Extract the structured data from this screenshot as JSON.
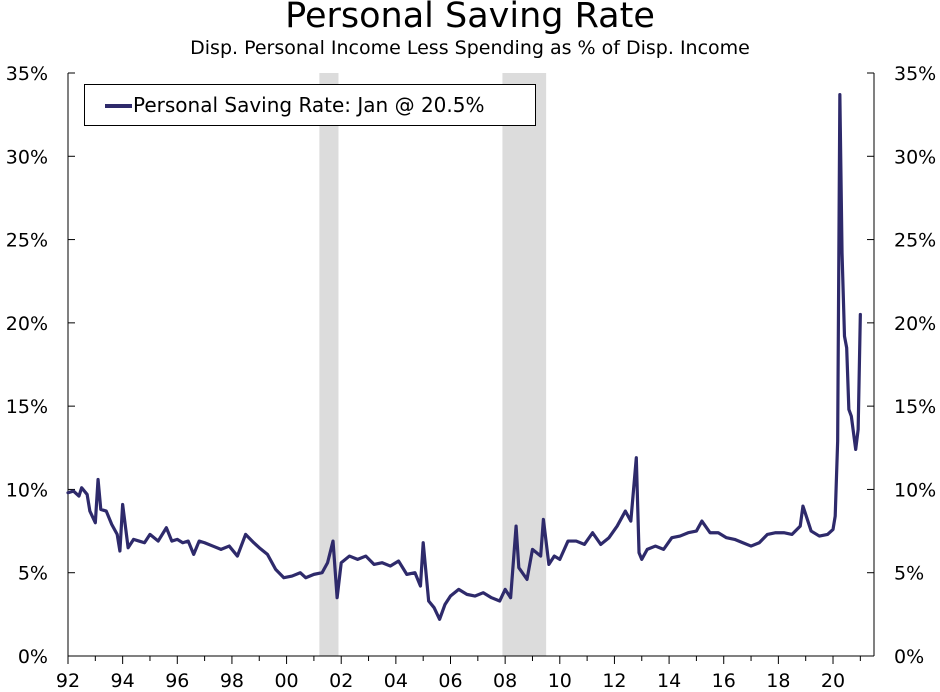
{
  "chart_data": {
    "type": "line",
    "title": "Personal Saving Rate",
    "subtitle": "Disp. Personal Income Less Spending as % of Disp. Income",
    "xlabel": "",
    "ylabel": "",
    "xlim": [
      1992,
      2021.5
    ],
    "ylim": [
      0,
      35
    ],
    "y_ticks": [
      0,
      5,
      10,
      15,
      20,
      25,
      30,
      35
    ],
    "y_tick_labels": [
      "0%",
      "5%",
      "10%",
      "15%",
      "20%",
      "25%",
      "30%",
      "35%"
    ],
    "x_ticks": [
      1992,
      1994,
      1996,
      1998,
      2000,
      2002,
      2004,
      2006,
      2008,
      2010,
      2012,
      2014,
      2016,
      2018,
      2020
    ],
    "x_tick_labels": [
      "92",
      "94",
      "96",
      "98",
      "00",
      "02",
      "04",
      "06",
      "08",
      "10",
      "12",
      "14",
      "16",
      "18",
      "20"
    ],
    "recessions": [
      [
        2001.2,
        2001.9
      ],
      [
        2007.9,
        2009.5
      ]
    ],
    "grid": false,
    "legend_position": "top-left",
    "series": [
      {
        "name": "Personal Saving Rate: Jan @ 20.5%",
        "color": "#2e2a6b",
        "x": [
          1992.0,
          1992.2,
          1992.4,
          1992.5,
          1992.7,
          1992.8,
          1993.0,
          1993.1,
          1993.2,
          1993.4,
          1993.6,
          1993.8,
          1993.9,
          1994.0,
          1994.2,
          1994.4,
          1994.6,
          1994.8,
          1995.0,
          1995.3,
          1995.6,
          1995.8,
          1996.0,
          1996.2,
          1996.4,
          1996.6,
          1996.8,
          1997.0,
          1997.3,
          1997.6,
          1997.9,
          1998.2,
          1998.5,
          1998.8,
          1999.0,
          1999.3,
          1999.6,
          1999.9,
          2000.2,
          2000.5,
          2000.7,
          2001.0,
          2001.3,
          2001.5,
          2001.7,
          2001.85,
          2002.0,
          2002.3,
          2002.6,
          2002.9,
          2003.2,
          2003.5,
          2003.8,
          2004.1,
          2004.4,
          2004.7,
          2004.9,
          2005.0,
          2005.2,
          2005.4,
          2005.6,
          2005.8,
          2006.0,
          2006.3,
          2006.6,
          2006.9,
          2007.2,
          2007.5,
          2007.8,
          2008.0,
          2008.2,
          2008.4,
          2008.5,
          2008.8,
          2009.0,
          2009.3,
          2009.4,
          2009.6,
          2009.8,
          2010.0,
          2010.3,
          2010.6,
          2010.9,
          2011.2,
          2011.5,
          2011.8,
          2012.1,
          2012.4,
          2012.6,
          2012.8,
          2012.9,
          2013.0,
          2013.2,
          2013.5,
          2013.8,
          2014.1,
          2014.4,
          2014.7,
          2015.0,
          2015.2,
          2015.5,
          2015.8,
          2016.1,
          2016.4,
          2016.7,
          2017.0,
          2017.3,
          2017.6,
          2017.9,
          2018.2,
          2018.5,
          2018.8,
          2018.9,
          2019.0,
          2019.2,
          2019.5,
          2019.8,
          2020.0,
          2020.08,
          2020.17,
          2020.25,
          2020.33,
          2020.42,
          2020.5,
          2020.58,
          2020.67,
          2020.75,
          2020.83,
          2020.92,
          2021.0
        ],
        "values": [
          9.8,
          9.9,
          9.6,
          10.1,
          9.7,
          8.7,
          8.0,
          10.6,
          8.8,
          8.7,
          7.9,
          7.3,
          6.3,
          9.1,
          6.5,
          7.0,
          6.9,
          6.8,
          7.3,
          6.9,
          7.7,
          6.9,
          7.0,
          6.8,
          6.9,
          6.1,
          6.9,
          6.8,
          6.6,
          6.4,
          6.6,
          6.0,
          7.3,
          6.8,
          6.5,
          6.1,
          5.2,
          4.7,
          4.8,
          5.0,
          4.7,
          4.9,
          5.0,
          5.6,
          6.9,
          3.5,
          5.6,
          6.0,
          5.8,
          6.0,
          5.5,
          5.6,
          5.4,
          5.7,
          4.9,
          5.0,
          4.2,
          6.8,
          3.3,
          2.9,
          2.2,
          3.1,
          3.6,
          4.0,
          3.7,
          3.6,
          3.8,
          3.5,
          3.3,
          4.0,
          3.5,
          7.8,
          5.3,
          4.6,
          6.4,
          6.0,
          8.2,
          5.5,
          6.0,
          5.8,
          6.9,
          6.9,
          6.7,
          7.4,
          6.7,
          7.1,
          7.8,
          8.7,
          8.1,
          11.9,
          6.2,
          5.8,
          6.4,
          6.6,
          6.4,
          7.1,
          7.2,
          7.4,
          7.5,
          8.1,
          7.4,
          7.4,
          7.1,
          7.0,
          6.8,
          6.6,
          6.8,
          7.3,
          7.4,
          7.4,
          7.3,
          7.8,
          9.0,
          8.5,
          7.5,
          7.2,
          7.3,
          7.6,
          8.4,
          12.9,
          33.7,
          24.2,
          19.2,
          18.5,
          14.8,
          14.4,
          13.4,
          12.4,
          13.6,
          20.5
        ]
      }
    ]
  }
}
